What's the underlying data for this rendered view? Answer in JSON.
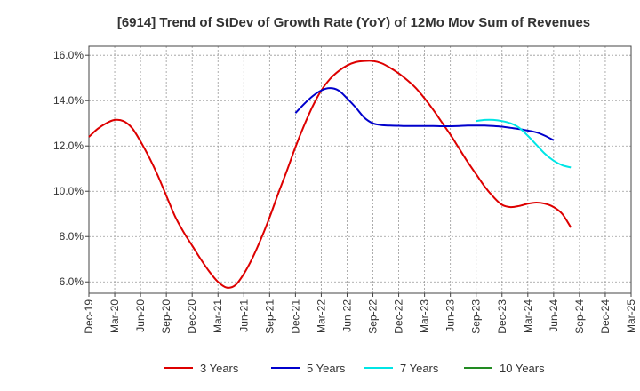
{
  "chart_data": {
    "type": "line",
    "title": "[6914]  Trend of StDev of Growth Rate (YoY) of 12Mo Mov Sum of Revenues",
    "xlabel": "",
    "ylabel": "",
    "ylim": [
      5.5,
      16.4
    ],
    "y_ticks": [
      6.0,
      8.0,
      10.0,
      12.0,
      14.0,
      16.0
    ],
    "y_tick_labels": [
      "6.0%",
      "8.0%",
      "10.0%",
      "12.0%",
      "14.0%",
      "16.0%"
    ],
    "x_tick_labels": [
      "Dec-19",
      "Mar-20",
      "Jun-20",
      "Sep-20",
      "Dec-20",
      "Mar-21",
      "Jun-21",
      "Sep-21",
      "Dec-21",
      "Mar-22",
      "Jun-22",
      "Sep-22",
      "Dec-22",
      "Mar-23",
      "Jun-23",
      "Sep-23",
      "Dec-23",
      "Mar-24",
      "Jun-24",
      "Sep-24",
      "Dec-24",
      "Mar-25"
    ],
    "grid": true,
    "legend_position": "bottom",
    "series": [
      {
        "name": "3 Years",
        "color": "#dd0000",
        "start_index": 0,
        "values": [
          12.4,
          12.75,
          13.0,
          13.15,
          13.1,
          12.8,
          12.2,
          11.5,
          10.7,
          9.8,
          8.9,
          8.2,
          7.6,
          7.0,
          6.45,
          6.0,
          5.75,
          5.85,
          6.35,
          7.05,
          7.9,
          8.85,
          9.9,
          10.9,
          11.95,
          12.9,
          13.75,
          14.45,
          14.95,
          15.3,
          15.55,
          15.7,
          15.75,
          15.75,
          15.65,
          15.45,
          15.2,
          14.9,
          14.55,
          14.1,
          13.6,
          13.05,
          12.5,
          11.9,
          11.3,
          10.75,
          10.2,
          9.75,
          9.4,
          9.3,
          9.35,
          9.45,
          9.5,
          9.45,
          9.3,
          9.0,
          8.4
        ]
      },
      {
        "name": "5 Years",
        "color": "#0000cc",
        "start_index": 24,
        "values": [
          13.45,
          13.85,
          14.2,
          14.45,
          14.55,
          14.45,
          14.1,
          13.7,
          13.25,
          13.0,
          12.92,
          12.9,
          12.89,
          12.88,
          12.88,
          12.88,
          12.88,
          12.87,
          12.87,
          12.88,
          12.9,
          12.9,
          12.9,
          12.88,
          12.85,
          12.8,
          12.75,
          12.68,
          12.6,
          12.45,
          12.25
        ]
      },
      {
        "name": "7 Years",
        "color": "#00e5e5",
        "start_index": 45,
        "values": [
          13.1,
          13.15,
          13.15,
          13.1,
          13.0,
          12.8,
          12.45,
          12.05,
          11.65,
          11.35,
          11.15,
          11.05
        ]
      },
      {
        "name": "10 Years",
        "color": "#228b22",
        "start_index": 0,
        "values": []
      }
    ]
  }
}
